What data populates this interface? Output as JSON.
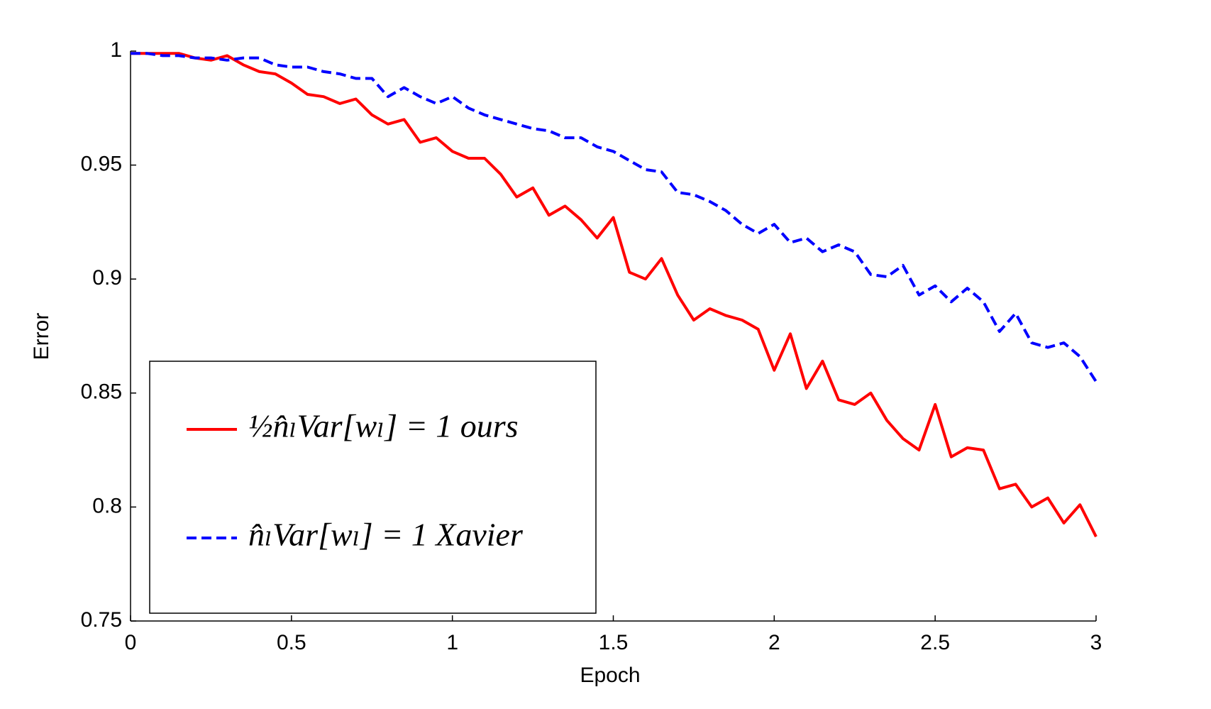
{
  "chart_data": {
    "type": "line",
    "x_label": "Epoch",
    "y_label": "Error",
    "x": [
      0,
      0.05,
      0.1,
      0.15,
      0.2,
      0.25,
      0.3,
      0.35,
      0.4,
      0.45,
      0.5,
      0.55,
      0.6,
      0.65,
      0.7,
      0.75,
      0.8,
      0.85,
      0.9,
      0.95,
      1,
      1.05,
      1.1,
      1.15,
      1.2,
      1.25,
      1.3,
      1.35,
      1.4,
      1.45,
      1.5,
      1.55,
      1.6,
      1.65,
      1.7,
      1.75,
      1.8,
      1.85,
      1.9,
      1.95,
      2,
      2.05,
      2.1,
      2.15,
      2.2,
      2.25,
      2.3,
      2.35,
      2.4,
      2.45,
      2.5,
      2.55,
      2.6,
      2.65,
      2.7,
      2.75,
      2.8,
      2.85,
      2.9,
      2.95,
      3
    ],
    "series": [
      {
        "name": "½n̂ₗVar[wₗ] = 1  ours",
        "color": "#ff0000",
        "dash": false,
        "values": [
          0.999,
          0.999,
          0.999,
          0.999,
          0.997,
          0.996,
          0.998,
          0.994,
          0.991,
          0.99,
          0.986,
          0.981,
          0.98,
          0.977,
          0.979,
          0.972,
          0.968,
          0.97,
          0.96,
          0.962,
          0.956,
          0.953,
          0.953,
          0.946,
          0.936,
          0.94,
          0.928,
          0.932,
          0.926,
          0.918,
          0.927,
          0.903,
          0.9,
          0.909,
          0.893,
          0.882,
          0.887,
          0.884,
          0.882,
          0.878,
          0.86,
          0.876,
          0.852,
          0.864,
          0.847,
          0.845,
          0.85,
          0.838,
          0.83,
          0.825,
          0.845,
          0.822,
          0.826,
          0.825,
          0.808,
          0.81,
          0.8,
          0.804,
          0.793,
          0.801,
          0.787
        ]
      },
      {
        "name": "n̂ₗVar[wₗ] = 1  Xavier",
        "color": "#0000ff",
        "dash": true,
        "values": [
          0.999,
          0.999,
          0.998,
          0.998,
          0.997,
          0.997,
          0.996,
          0.997,
          0.997,
          0.994,
          0.993,
          0.993,
          0.991,
          0.99,
          0.988,
          0.988,
          0.98,
          0.984,
          0.98,
          0.977,
          0.98,
          0.975,
          0.972,
          0.97,
          0.968,
          0.966,
          0.965,
          0.962,
          0.962,
          0.958,
          0.956,
          0.952,
          0.948,
          0.947,
          0.938,
          0.937,
          0.934,
          0.93,
          0.924,
          0.92,
          0.924,
          0.916,
          0.918,
          0.912,
          0.915,
          0.912,
          0.902,
          0.901,
          0.906,
          0.893,
          0.897,
          0.89,
          0.896,
          0.89,
          0.877,
          0.885,
          0.872,
          0.87,
          0.872,
          0.866,
          0.855
        ]
      }
    ],
    "xlim": [
      0,
      3
    ],
    "ylim": [
      0.75,
      1
    ],
    "xticks": [
      0,
      0.5,
      1,
      1.5,
      2,
      2.5,
      3
    ],
    "yticks": [
      0.75,
      0.8,
      0.85,
      0.9,
      0.95,
      1
    ],
    "legend": "lower left",
    "grid": false
  }
}
